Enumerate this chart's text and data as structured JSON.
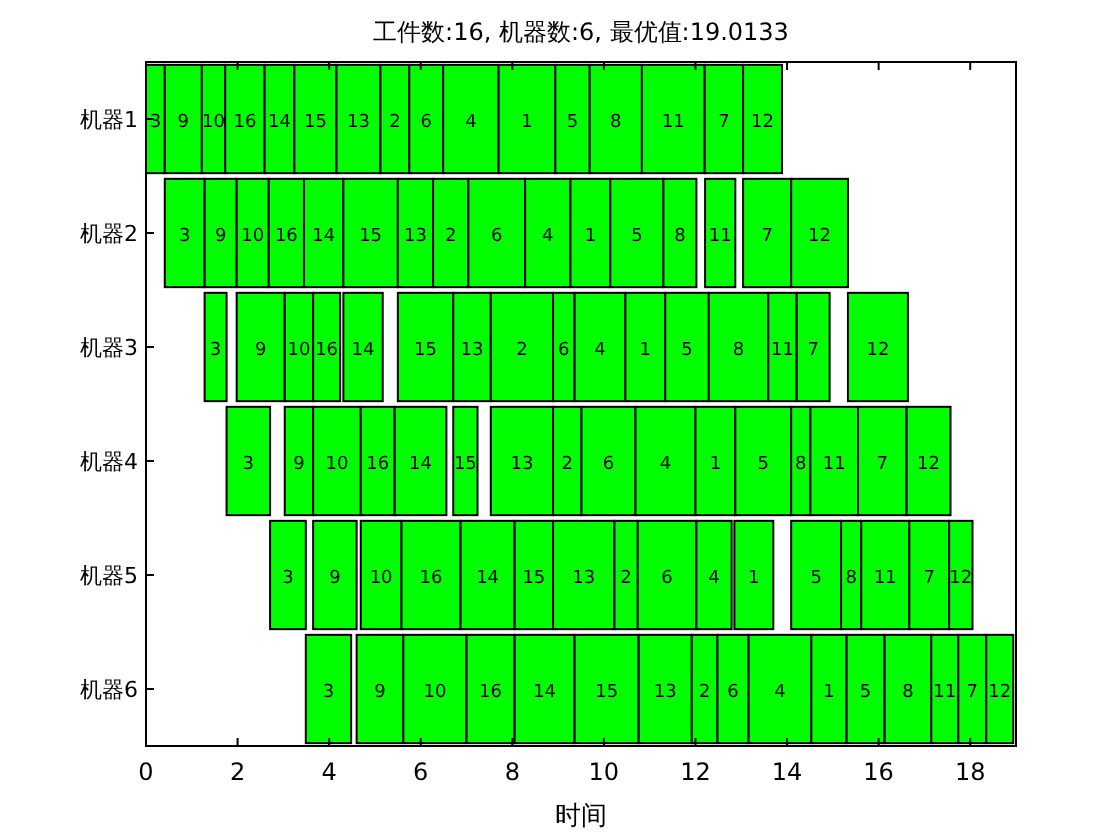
{
  "chart_data": {
    "type": "bar",
    "orientation": "horizontal",
    "title": "工件数:16, 机器数:6, 最优值:19.0133",
    "xlabel": "时间",
    "categories": [
      "机器1",
      "机器2",
      "机器3",
      "机器4",
      "机器5",
      "机器6"
    ],
    "xlim": [
      0,
      19
    ],
    "xticks": [
      0,
      2,
      4,
      6,
      8,
      10,
      12,
      14,
      16,
      18
    ],
    "series": [
      {
        "name": "3",
        "color": "#00ff00",
        "base": [
          0,
          0.41,
          1.28,
          1.76,
          2.71,
          3.49
        ],
        "values": [
          0.41,
          0.87,
          0.48,
          0.95,
          0.78,
          0.99
        ]
      },
      {
        "name": "9",
        "color": "#00ff00",
        "base": [
          0.41,
          1.28,
          1.98,
          3.03,
          3.65,
          4.6
        ],
        "values": [
          0.81,
          0.7,
          1.05,
          0.62,
          0.95,
          1.02
        ]
      },
      {
        "name": "10",
        "color": "#00ff00",
        "base": [
          1.22,
          1.98,
          3.03,
          3.65,
          4.69,
          5.62
        ],
        "values": [
          0.51,
          0.7,
          0.62,
          1.04,
          0.89,
          1.38
        ]
      },
      {
        "name": "16",
        "color": "#00ff00",
        "base": [
          1.73,
          2.68,
          3.65,
          4.69,
          5.58,
          7.0
        ],
        "values": [
          0.86,
          0.77,
          0.59,
          0.74,
          1.29,
          1.05
        ]
      },
      {
        "name": "14",
        "color": "#00ff00",
        "base": [
          2.59,
          3.45,
          4.31,
          5.43,
          6.87,
          8.05
        ],
        "values": [
          0.65,
          0.86,
          0.86,
          1.13,
          1.18,
          1.31
        ]
      },
      {
        "name": "15",
        "color": "#00ff00",
        "base": [
          3.24,
          4.31,
          5.5,
          6.71,
          8.05,
          9.36
        ],
        "values": [
          0.92,
          1.19,
          1.21,
          0.53,
          0.84,
          1.4
        ]
      },
      {
        "name": "13",
        "color": "#00ff00",
        "base": [
          4.16,
          5.5,
          6.71,
          7.53,
          8.89,
          10.76
        ],
        "values": [
          0.96,
          0.77,
          0.82,
          1.36,
          1.34,
          1.16
        ]
      },
      {
        "name": "2",
        "color": "#00ff00",
        "base": [
          5.12,
          6.27,
          7.53,
          8.89,
          10.23,
          11.92
        ],
        "values": [
          0.63,
          0.77,
          1.36,
          0.62,
          0.51,
          0.56
        ]
      },
      {
        "name": "6",
        "color": "#00ff00",
        "base": [
          5.75,
          7.04,
          8.89,
          9.51,
          10.74,
          12.48
        ],
        "values": [
          0.74,
          1.24,
          0.47,
          1.18,
          1.28,
          0.68
        ]
      },
      {
        "name": "4",
        "color": "#00ff00",
        "base": [
          6.49,
          8.28,
          9.36,
          10.69,
          12.02,
          13.16
        ],
        "values": [
          1.21,
          0.99,
          1.11,
          1.31,
          0.77,
          1.37
        ]
      },
      {
        "name": "1",
        "color": "#00ff00",
        "base": [
          7.7,
          9.27,
          10.47,
          12.0,
          12.85,
          14.53
        ],
        "values": [
          1.24,
          0.87,
          0.87,
          0.87,
          0.85,
          0.77
        ]
      },
      {
        "name": "5",
        "color": "#00ff00",
        "base": [
          8.94,
          10.14,
          11.34,
          12.87,
          14.09,
          15.3
        ],
        "values": [
          0.75,
          1.16,
          0.95,
          1.22,
          1.09,
          0.83
        ]
      },
      {
        "name": "8",
        "color": "#00ff00",
        "base": [
          9.69,
          11.3,
          12.29,
          14.09,
          15.18,
          16.13
        ],
        "values": [
          1.14,
          0.72,
          1.3,
          0.42,
          0.44,
          1.02
        ]
      },
      {
        "name": "11",
        "color": "#00ff00",
        "base": [
          10.83,
          12.21,
          13.59,
          14.51,
          15.62,
          17.15
        ],
        "values": [
          1.37,
          0.66,
          0.62,
          1.04,
          1.05,
          0.59
        ]
      },
      {
        "name": "7",
        "color": "#00ff00",
        "base": [
          12.2,
          13.04,
          14.21,
          15.55,
          16.67,
          17.74
        ],
        "values": [
          0.84,
          1.05,
          0.72,
          1.06,
          0.87,
          0.61
        ]
      },
      {
        "name": "12",
        "color": "#00ff00",
        "base": [
          13.04,
          14.09,
          15.33,
          16.61,
          17.54,
          18.35
        ],
        "values": [
          0.85,
          1.24,
          1.31,
          0.96,
          0.51,
          0.59
        ]
      }
    ]
  }
}
